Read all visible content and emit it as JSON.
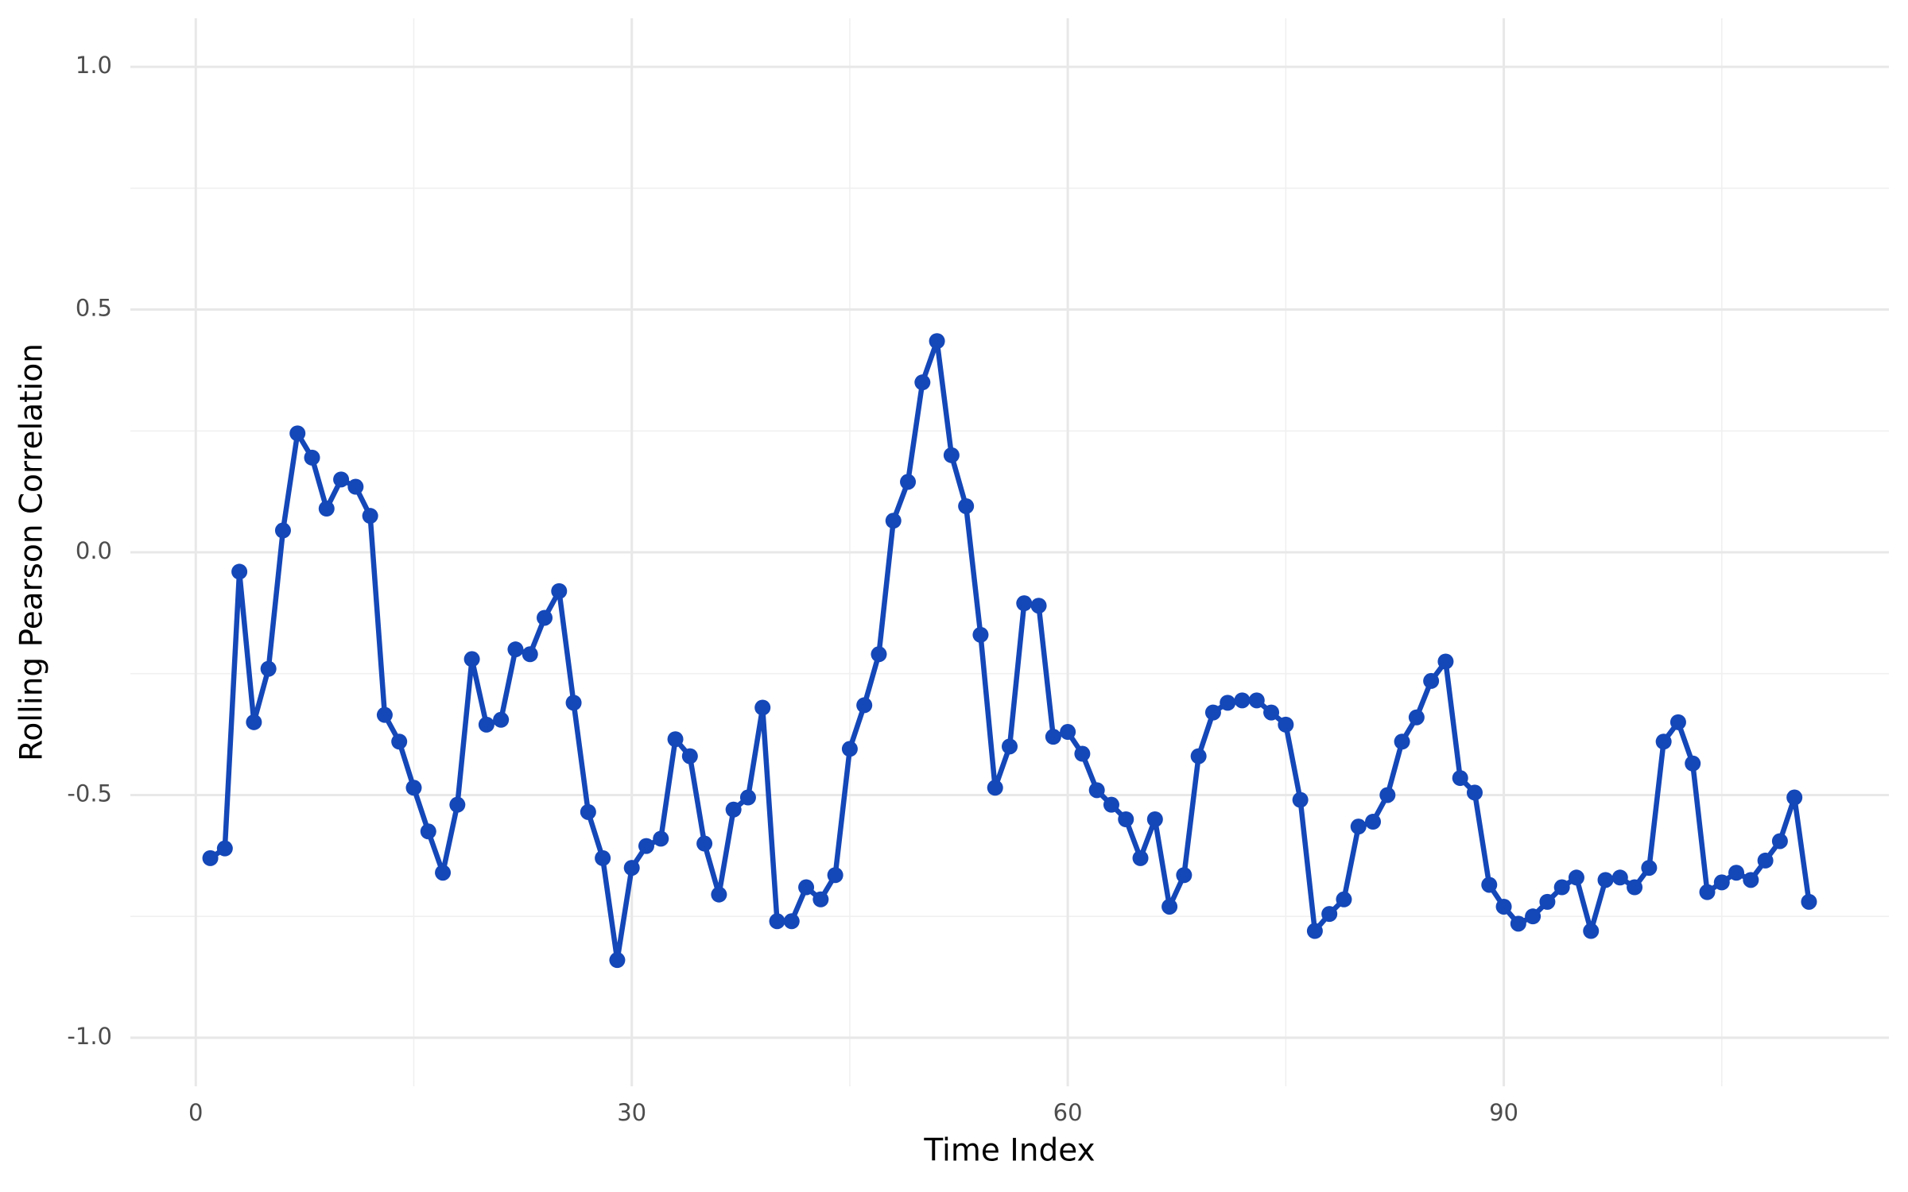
{
  "chart_data": {
    "type": "line",
    "x_label": "Time Index",
    "y_label": "Rolling Pearson Correlation",
    "x": [
      1,
      2,
      3,
      4,
      5,
      6,
      7,
      8,
      9,
      10,
      11,
      12,
      13,
      14,
      15,
      16,
      17,
      18,
      19,
      20,
      21,
      22,
      23,
      24,
      25,
      26,
      27,
      28,
      29,
      30,
      31,
      32,
      33,
      34,
      35,
      36,
      37,
      38,
      39,
      40,
      41,
      42,
      43,
      44,
      45,
      46,
      47,
      48,
      49,
      50,
      51,
      52,
      53,
      54,
      55,
      56,
      57,
      58,
      59,
      60,
      61,
      62,
      63,
      64,
      65,
      66,
      67,
      68,
      69,
      70,
      71,
      72,
      73,
      74,
      75,
      76,
      77,
      78,
      79,
      80,
      81,
      82,
      83,
      84,
      85,
      86,
      87,
      88,
      89,
      90,
      91,
      92,
      93,
      94,
      95,
      96,
      97,
      98,
      99,
      100,
      101,
      102,
      103,
      104,
      105,
      106,
      107,
      108,
      109,
      110,
      111
    ],
    "series": [
      {
        "name": "Rolling Pearson Correlation",
        "color": "#1447b8",
        "values": [
          -0.63,
          -0.61,
          -0.04,
          -0.35,
          -0.24,
          0.045,
          0.245,
          0.195,
          0.09,
          0.15,
          0.135,
          0.075,
          -0.335,
          -0.39,
          -0.485,
          -0.575,
          -0.66,
          -0.52,
          -0.22,
          -0.355,
          -0.345,
          -0.2,
          -0.21,
          -0.135,
          -0.08,
          -0.31,
          -0.535,
          -0.63,
          -0.84,
          -0.65,
          -0.605,
          -0.59,
          -0.385,
          -0.42,
          -0.6,
          -0.705,
          -0.53,
          -0.505,
          -0.32,
          -0.76,
          -0.76,
          -0.69,
          -0.715,
          -0.665,
          -0.405,
          -0.315,
          -0.21,
          0.065,
          0.145,
          0.35,
          0.435,
          0.2,
          0.095,
          -0.17,
          -0.485,
          -0.4,
          -0.105,
          -0.11,
          -0.38,
          -0.37,
          -0.415,
          -0.49,
          -0.52,
          -0.55,
          -0.63,
          -0.55,
          -0.73,
          -0.665,
          -0.42,
          -0.33,
          -0.31,
          -0.305,
          -0.305,
          -0.33,
          -0.355,
          -0.51,
          -0.78,
          -0.745,
          -0.715,
          -0.565,
          -0.555,
          -0.5,
          -0.39,
          -0.34,
          -0.265,
          -0.225,
          -0.465,
          -0.495,
          -0.685,
          -0.73,
          -0.765,
          -0.75,
          -0.72,
          -0.69,
          -0.67,
          -0.78,
          -0.675,
          -0.67,
          -0.69,
          -0.65,
          -0.39,
          -0.35,
          -0.435,
          -0.7,
          -0.68,
          -0.66,
          -0.675,
          -0.635,
          -0.595,
          -0.505,
          -0.72
        ]
      }
    ],
    "xlim": [
      -4.5,
      116.5
    ],
    "ylim": [
      -1.1,
      1.1
    ],
    "xticks": [
      0,
      30,
      60,
      90
    ],
    "yticks": [
      {
        "value": -1,
        "label": "-1.0"
      },
      {
        "value": -0.5,
        "label": "-0.5"
      },
      {
        "value": 0,
        "label": "0.0"
      },
      {
        "value": 0.5,
        "label": "0.5"
      },
      {
        "value": 1,
        "label": "1.0"
      }
    ],
    "x_minor_grid": [
      15,
      45,
      75,
      105
    ],
    "y_minor_grid": [
      -0.75,
      -0.25,
      0.25,
      0.75
    ],
    "grid": true
  }
}
